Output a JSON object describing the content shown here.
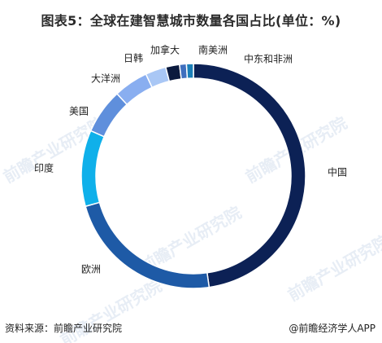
{
  "title": "图表5：全球在建智慧城市数量各国占比(单位：%)",
  "source": "资料来源：前瞻产业研究院",
  "credit": "@前瞻经济学人APP",
  "watermark": "前瞻产业研究院",
  "colors": {
    "中国": "#0c2155",
    "欧洲": "#1e5aa6",
    "印度": "#0fb0ea",
    "美国": "#5f8fdc",
    "大洋洲": "#89aef0",
    "日韩": "#a9c7f5",
    "加拿大": "#0b1a3e",
    "南美洲": "#3f6fbe",
    "中东和非洲": "#1a7fb8"
  },
  "chart_data": {
    "type": "pie",
    "donut": true,
    "title": "图表5：全球在建智慧城市数量各国占比(单位：%)",
    "categories": [
      "中国",
      "欧洲",
      "印度",
      "美国",
      "大洋洲",
      "日韩",
      "加拿大",
      "南美洲",
      "中东和非洲"
    ],
    "values": [
      48,
      23,
      11,
      6.5,
      5,
      3,
      2,
      1,
      1
    ]
  }
}
